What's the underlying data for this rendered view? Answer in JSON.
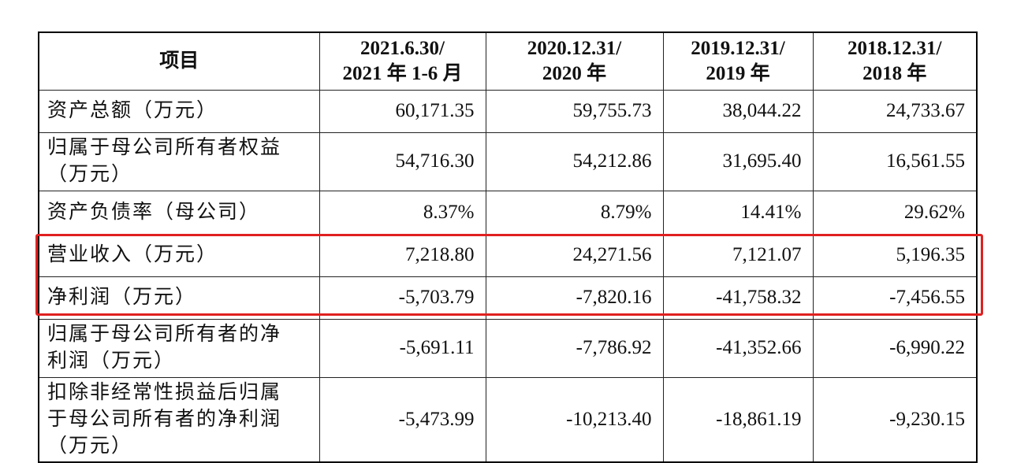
{
  "table": {
    "header": [
      [
        "项目"
      ],
      [
        "2021.6.30/",
        "2021 年 1-6 月"
      ],
      [
        "2020.12.31/",
        "2020 年"
      ],
      [
        "2019.12.31/",
        "2019 年"
      ],
      [
        "2018.12.31/",
        "2018 年"
      ]
    ],
    "rows": [
      [
        [
          "资产总额（万元）"
        ],
        "60,171.35",
        "59,755.73",
        "38,044.22",
        "24,733.67"
      ],
      [
        [
          "归属于母公司所有者权益",
          "（万元）"
        ],
        "54,716.30",
        "54,212.86",
        "31,695.40",
        "16,561.55"
      ],
      [
        [
          "资产负债率（母公司）"
        ],
        "8.37%",
        "8.79%",
        "14.41%",
        "29.62%"
      ],
      [
        [
          "营业收入（万元）"
        ],
        "7,218.80",
        "24,271.56",
        "7,121.07",
        "5,196.35"
      ],
      [
        [
          "净利润（万元）"
        ],
        "-5,703.79",
        "-7,820.16",
        "-41,758.32",
        "-7,456.55"
      ],
      [
        [
          "归属于母公司所有者的净",
          "利润（万元）"
        ],
        "-5,691.11",
        "-7,786.92",
        "-41,352.66",
        "-6,990.22"
      ],
      [
        [
          "扣除非经常性损益后归属",
          "于母公司所有者的净利润",
          "（万元）"
        ],
        "-5,473.99",
        "-10,213.40",
        "-18,861.19",
        "-9,230.15"
      ]
    ]
  }
}
